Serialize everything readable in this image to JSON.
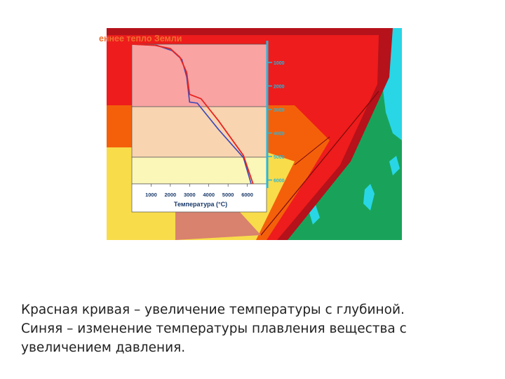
{
  "figure": {
    "title": "еннее тепло Земли",
    "depth_scale": {
      "tick_labels": [
        "1000",
        "2000",
        "3000",
        "4000",
        "5000",
        "6000"
      ]
    },
    "temperature_axis": {
      "label": "Температура (°C)",
      "tick_labels": [
        "1000",
        "2000",
        "3000",
        "4000",
        "5000",
        "6000"
      ],
      "range": [
        0,
        7000
      ]
    },
    "curves": {
      "temperature": {
        "color": "#e8231e",
        "points": [
          [
            0,
            0
          ],
          [
            1200,
            50
          ],
          [
            2000,
            200
          ],
          [
            2500,
            600
          ],
          [
            2850,
            1300
          ],
          [
            3000,
            2300
          ],
          [
            3600,
            2500
          ],
          [
            4500,
            3500
          ],
          [
            5800,
            5100
          ],
          [
            6300,
            6400
          ]
        ]
      },
      "melting": {
        "color": "#3b48b8",
        "points": [
          [
            0,
            0
          ],
          [
            1300,
            50
          ],
          [
            2100,
            300
          ],
          [
            2600,
            700
          ],
          [
            2850,
            1500
          ],
          [
            3000,
            2650
          ],
          [
            3400,
            2700
          ],
          [
            4500,
            3900
          ],
          [
            5800,
            5200
          ],
          [
            6200,
            6400
          ]
        ]
      }
    },
    "colors": {
      "crust": "#b5121b",
      "mantle": "#ee1c1c",
      "outer_core": "#f4600a",
      "inner_core": "#f8dc4a",
      "ocean": "#19a35a",
      "ice": "#28d6e6",
      "mantle_zone": "#f9a3a3",
      "outer_core_zone": "#f8d4b0",
      "inner_core_zone": "#fbf7b8",
      "scale": "#29b6dc"
    }
  },
  "caption": {
    "line1": "Красная кривая – увеличение температуры с глубиной.",
    "line2": "Синяя – изменение температуры плавления вещества с",
    "line3": "увеличением давления."
  }
}
